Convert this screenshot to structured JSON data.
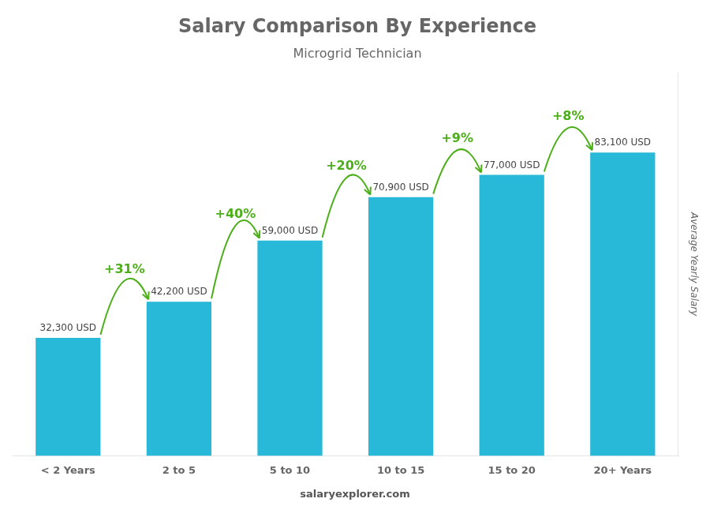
{
  "chart_data": {
    "type": "bar",
    "title": "Salary Comparison By Experience",
    "subtitle": "Microgrid Technician",
    "ylabel": "Average Yearly Salary",
    "categories": [
      "< 2 Years",
      "2 to 5",
      "5 to 10",
      "10 to 15",
      "15 to 20",
      "20+ Years"
    ],
    "values": [
      32300,
      42200,
      59000,
      70900,
      77000,
      83100
    ],
    "value_labels": [
      "32,300 USD",
      "42,200 USD",
      "59,000 USD",
      "70,900 USD",
      "77,000 USD",
      "83,100 USD"
    ],
    "data_labels": true,
    "annotations": [
      "+31%",
      "+40%",
      "+20%",
      "+9%",
      "+8%"
    ],
    "footer": "salaryexplorer.com",
    "color": "#29b9d8",
    "ylim": [
      0,
      105000
    ],
    "grid": false,
    "tick_labels": "x"
  }
}
